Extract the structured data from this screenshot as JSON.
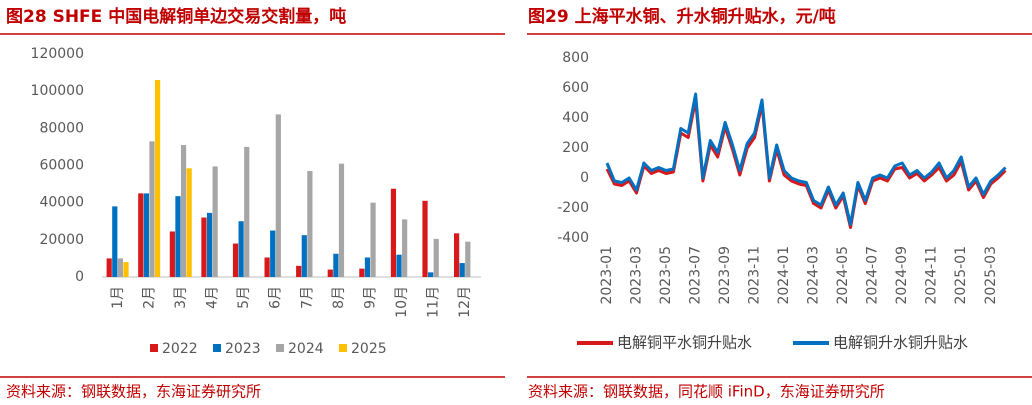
{
  "chart_data": [
    {
      "type": "bar",
      "title": "图28 SHFE 中国电解铜单边交易交割量，吨",
      "source": "资料来源：钢联数据，东海证券研究所",
      "categories": [
        "1月",
        "2月",
        "3月",
        "4月",
        "5月",
        "6月",
        "7月",
        "8月",
        "9月",
        "10月",
        "11月",
        "12月"
      ],
      "series": [
        {
          "name": "2022",
          "color": "#d7191c",
          "values": [
            10000,
            45000,
            24500,
            32000,
            18000,
            10500,
            6000,
            4000,
            4500,
            47500,
            41000,
            23500
          ]
        },
        {
          "name": "2023",
          "color": "#0070c0",
          "values": [
            38000,
            45000,
            43500,
            34500,
            30000,
            25000,
            22500,
            12500,
            10500,
            12000,
            2500,
            7500
          ]
        },
        {
          "name": "2024",
          "color": "#a6a6a6",
          "values": [
            10000,
            73000,
            71000,
            59500,
            70000,
            87500,
            57000,
            61000,
            40000,
            31000,
            20500,
            19000
          ]
        },
        {
          "name": "2025",
          "color": "#ffc000",
          "values": [
            8000,
            106000,
            58500,
            null,
            null,
            null,
            null,
            null,
            null,
            null,
            null,
            null
          ]
        }
      ],
      "ylim": [
        0,
        120000
      ],
      "yticks": [
        0,
        20000,
        40000,
        60000,
        80000,
        100000,
        120000
      ],
      "grid": false,
      "legend": "bottom"
    },
    {
      "type": "line",
      "title": "图29 上海平水铜、升水铜升贴水，元/吨",
      "source": "资料来源：钢联数据，同花顺 iFinD，东海证券研究所",
      "categories": [
        "2023-01",
        null,
        null,
        null,
        "2023-03",
        null,
        null,
        null,
        "2023-05",
        null,
        null,
        null,
        "2023-07",
        null,
        null,
        null,
        "2023-09",
        null,
        null,
        null,
        "2023-11",
        null,
        null,
        null,
        "2024-01",
        null,
        null,
        null,
        "2024-03",
        null,
        null,
        null,
        "2024-05",
        null,
        null,
        null,
        "2024-07",
        null,
        null,
        null,
        "2024-09",
        null,
        null,
        null,
        "2024-11",
        null,
        null,
        null,
        "2025-01",
        null,
        null,
        null,
        "2025-03",
        null,
        null
      ],
      "series": [
        {
          "name": "电解铜平水铜升贴水",
          "color": "#d7191c",
          "values": [
            60,
            -40,
            -50,
            -20,
            -100,
            80,
            30,
            50,
            30,
            40,
            300,
            270,
            520,
            -20,
            220,
            140,
            340,
            190,
            20,
            200,
            270,
            490,
            -20,
            190,
            20,
            -20,
            -40,
            -50,
            -170,
            -200,
            -80,
            -200,
            -120,
            -330,
            -50,
            -170,
            -20,
            0,
            -20,
            60,
            70,
            0,
            30,
            -20,
            20,
            70,
            -20,
            20,
            110,
            -80,
            -20,
            -130,
            -40,
            0,
            50
          ]
        },
        {
          "name": "电解铜升水铜升贴水",
          "color": "#0070c0",
          "values": [
            100,
            -20,
            -30,
            0,
            -80,
            100,
            50,
            70,
            50,
            60,
            330,
            300,
            560,
            0,
            250,
            170,
            370,
            220,
            50,
            230,
            300,
            520,
            0,
            220,
            50,
            0,
            -20,
            -30,
            -150,
            -180,
            -60,
            -180,
            -100,
            -310,
            -30,
            -150,
            0,
            20,
            0,
            80,
            100,
            20,
            50,
            0,
            40,
            100,
            0,
            50,
            140,
            -60,
            0,
            -110,
            -20,
            20,
            70
          ]
        }
      ],
      "ylim": [
        -400,
        800
      ],
      "yticks": [
        -400,
        -200,
        0,
        200,
        400,
        600,
        800
      ],
      "grid": false,
      "legend": "bottom"
    }
  ]
}
